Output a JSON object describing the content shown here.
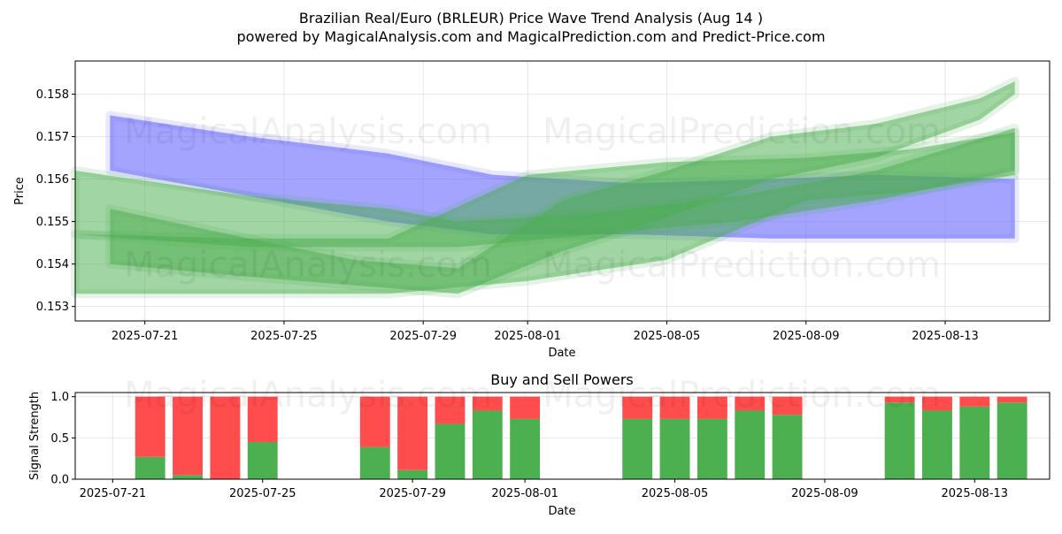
{
  "header": {
    "title": "Brazilian Real/Euro (BRLEUR) Price Wave Trend Analysis (Aug 14 )",
    "subtitle": "powered by MagicalAnalysis.com and MagicalPrediction.com and Predict-Price.com"
  },
  "watermarks": [
    "MagicalAnalysis.com",
    "MagicalPrediction.com"
  ],
  "colors": {
    "blue_band": "#6666ff",
    "green_band": "#4caf50",
    "buy": "#4caf50",
    "sell": "#ff4c4c"
  },
  "chart_data": [
    {
      "type": "area",
      "title": "",
      "xlabel": "Date",
      "ylabel": "Price",
      "x_ticks": [
        "2025-07-21",
        "2025-07-25",
        "2025-07-29",
        "2025-08-01",
        "2025-08-05",
        "2025-08-09",
        "2025-08-13"
      ],
      "y_ticks": [
        0.153,
        0.154,
        0.155,
        0.156,
        0.157,
        0.158
      ],
      "xlim": [
        "2025-07-19",
        "2025-08-16"
      ],
      "ylim": [
        0.15266,
        0.15878
      ],
      "grid": true,
      "series": [
        {
          "color": "blue",
          "x": [
            "2025-07-20",
            "2025-07-24",
            "2025-07-28",
            "2025-07-31",
            "2025-08-04",
            "2025-08-08",
            "2025-08-11",
            "2025-08-15"
          ],
          "upper": [
            0.1575,
            0.157,
            0.1566,
            0.1561,
            0.1559,
            0.156,
            0.1561,
            0.156
          ],
          "lower": [
            0.1562,
            0.1556,
            0.155,
            0.1547,
            0.1547,
            0.1546,
            0.1546,
            0.1546
          ]
        },
        {
          "color": "green",
          "x": [
            "2025-07-20",
            "2025-07-24",
            "2025-07-27",
            "2025-07-30",
            "2025-08-02",
            "2025-08-05",
            "2025-08-08",
            "2025-08-11",
            "2025-08-14",
            "2025-08-15"
          ],
          "upper": [
            0.1553,
            0.1546,
            0.1541,
            0.1539,
            0.1555,
            0.1562,
            0.157,
            0.1573,
            0.1579,
            0.1583
          ],
          "lower": [
            0.154,
            0.1537,
            0.1535,
            0.1533,
            0.1543,
            0.1551,
            0.156,
            0.1565,
            0.1574,
            0.158
          ]
        },
        {
          "color": "green",
          "x": [
            "2025-07-19",
            "2025-07-24",
            "2025-07-28",
            "2025-07-30",
            "2025-08-03",
            "2025-08-07",
            "2025-08-11",
            "2025-08-15"
          ],
          "upper": [
            0.1562,
            0.1556,
            0.1553,
            0.155,
            0.1552,
            0.1556,
            0.1562,
            0.1572
          ],
          "lower": [
            0.1547,
            0.1544,
            0.1544,
            0.1544,
            0.1547,
            0.155,
            0.1555,
            0.1562
          ]
        },
        {
          "color": "green",
          "x": [
            "2025-07-19",
            "2025-07-24",
            "2025-07-28",
            "2025-08-01",
            "2025-08-05",
            "2025-08-09",
            "2025-08-12",
            "2025-08-15"
          ],
          "upper": [
            0.1547,
            0.1546,
            0.1546,
            0.1561,
            0.1564,
            0.1565,
            0.1567,
            0.1571
          ],
          "lower": [
            0.1533,
            0.1533,
            0.1533,
            0.1536,
            0.1541,
            0.1555,
            0.1557,
            0.1561
          ]
        }
      ]
    },
    {
      "type": "bar",
      "title": "Buy and Sell Powers",
      "xlabel": "Date",
      "ylabel": "Signal Strength",
      "x_ticks": [
        "2025-07-21",
        "2025-07-25",
        "2025-07-29",
        "2025-08-01",
        "2025-08-05",
        "2025-08-09",
        "2025-08-13"
      ],
      "y_ticks": [
        "0.0",
        "0.5",
        "1.0"
      ],
      "xlim": [
        "2025-07-20",
        "2025-08-15"
      ],
      "ylim": [
        0,
        1.05
      ],
      "categories": [
        "2025-07-22",
        "2025-07-23",
        "2025-07-24",
        "2025-07-25",
        "2025-07-28",
        "2025-07-29",
        "2025-07-30",
        "2025-07-31",
        "2025-08-01",
        "2025-08-04",
        "2025-08-05",
        "2025-08-06",
        "2025-08-07",
        "2025-08-08",
        "2025-08-11",
        "2025-08-12",
        "2025-08-13",
        "2025-08-14"
      ],
      "series": [
        {
          "values": [
            0.27,
            0.05,
            0.0,
            0.45,
            0.39,
            0.11,
            0.67,
            0.83,
            0.73,
            0.73,
            0.73,
            0.73,
            0.83,
            0.78,
            0.93,
            0.83,
            0.88,
            0.93
          ]
        },
        {
          "values": [
            0.73,
            0.95,
            1.0,
            0.55,
            0.61,
            0.89,
            0.33,
            0.17,
            0.27,
            0.27,
            0.27,
            0.27,
            0.17,
            0.22,
            0.07,
            0.17,
            0.12,
            0.07
          ]
        }
      ]
    }
  ]
}
